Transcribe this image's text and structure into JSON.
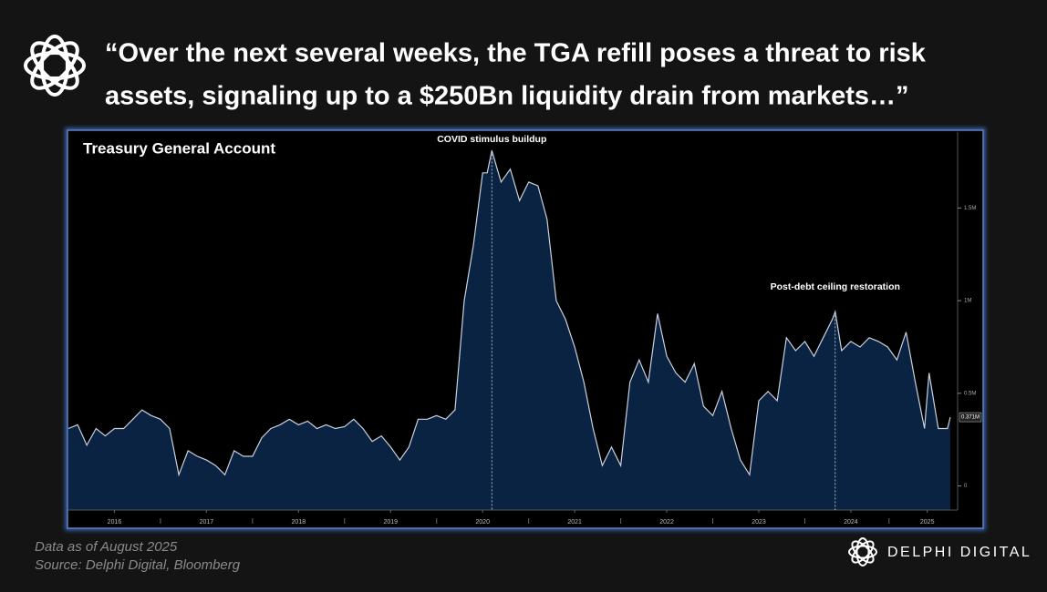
{
  "header": {
    "title_lines": [
      "“Over the next several weeks, the TGA refill poses a threat to risk",
      "assets, signaling up to a $250Bn liquidity drain from markets…”"
    ]
  },
  "chart_data": {
    "type": "area",
    "title": "Treasury General Account",
    "x": [
      2016.0,
      2016.1,
      2016.2,
      2016.3,
      2016.4,
      2016.5,
      2016.6,
      2016.7,
      2016.8,
      2016.9,
      2017.0,
      2017.1,
      2017.2,
      2017.3,
      2017.4,
      2017.5,
      2017.6,
      2017.7,
      2017.8,
      2017.9,
      2018.0,
      2018.1,
      2018.2,
      2018.3,
      2018.4,
      2018.5,
      2018.6,
      2018.7,
      2018.8,
      2018.9,
      2019.0,
      2019.1,
      2019.2,
      2019.3,
      2019.4,
      2019.5,
      2019.6,
      2019.7,
      2019.8,
      2019.9,
      2020.0,
      2020.1,
      2020.2,
      2020.3,
      2020.4,
      2020.5,
      2020.55,
      2020.6,
      2020.7,
      2020.8,
      2020.9,
      2021.0,
      2021.1,
      2021.2,
      2021.3,
      2021.4,
      2021.5,
      2021.6,
      2021.7,
      2021.8,
      2021.9,
      2022.0,
      2022.1,
      2022.2,
      2022.3,
      2022.4,
      2022.5,
      2022.6,
      2022.7,
      2022.8,
      2022.9,
      2023.0,
      2023.1,
      2023.2,
      2023.3,
      2023.4,
      2023.5,
      2023.6,
      2023.7,
      2023.8,
      2023.9,
      2024.0,
      2024.1,
      2024.2,
      2024.3,
      2024.33,
      2024.4,
      2024.5,
      2024.6,
      2024.7,
      2024.8,
      2024.9,
      2025.0,
      2025.1,
      2025.2,
      2025.3,
      2025.35,
      2025.45,
      2025.55,
      2025.58
    ],
    "values": [
      0.31,
      0.33,
      0.22,
      0.31,
      0.27,
      0.31,
      0.31,
      0.36,
      0.41,
      0.38,
      0.36,
      0.31,
      0.06,
      0.19,
      0.16,
      0.14,
      0.11,
      0.06,
      0.19,
      0.16,
      0.16,
      0.26,
      0.31,
      0.33,
      0.36,
      0.33,
      0.35,
      0.31,
      0.33,
      0.31,
      0.32,
      0.36,
      0.31,
      0.24,
      0.27,
      0.21,
      0.14,
      0.21,
      0.36,
      0.36,
      0.38,
      0.36,
      0.41,
      1.0,
      1.3,
      1.69,
      1.69,
      1.81,
      1.64,
      1.71,
      1.54,
      1.64,
      1.62,
      1.44,
      1.0,
      0.9,
      0.75,
      0.56,
      0.31,
      0.11,
      0.21,
      0.11,
      0.56,
      0.68,
      0.56,
      0.93,
      0.7,
      0.61,
      0.56,
      0.66,
      0.43,
      0.38,
      0.51,
      0.31,
      0.14,
      0.06,
      0.46,
      0.51,
      0.46,
      0.8,
      0.73,
      0.78,
      0.7,
      0.8,
      0.9,
      0.94,
      0.73,
      0.78,
      0.75,
      0.8,
      0.78,
      0.75,
      0.68,
      0.83,
      0.56,
      0.31,
      0.61,
      0.31,
      0.31,
      0.371
    ],
    "xlim": [
      2016,
      2025.66
    ],
    "ylim": [
      -0.13,
      1.91
    ],
    "xticks": [
      {
        "value": 2016.5,
        "label": "2016"
      },
      {
        "value": 2017.5,
        "label": "2017"
      },
      {
        "value": 2018.5,
        "label": "2018"
      },
      {
        "value": 2019.5,
        "label": "2019"
      },
      {
        "value": 2020.5,
        "label": "2020"
      },
      {
        "value": 2021.5,
        "label": "2021"
      },
      {
        "value": 2022.5,
        "label": "2022"
      },
      {
        "value": 2023.5,
        "label": "2023"
      },
      {
        "value": 2024.5,
        "label": "2024"
      },
      {
        "value": 2025.33,
        "label": "2025"
      }
    ],
    "yticks": [
      0,
      {
        "value": 0.5,
        "label": "0.5M"
      },
      {
        "value": 1,
        "label": "1M"
      },
      {
        "value": 1.5,
        "label": "1.5M"
      }
    ],
    "last_price": {
      "value": 0.371,
      "label": "0.371M"
    },
    "annotations": [
      {
        "text": "COVID stimulus buildup",
        "x": 2020.6,
        "y": 1.81
      },
      {
        "text": "Post-debt ceiling restoration",
        "x": 2024.33,
        "y": 0.94
      }
    ],
    "fill_color": "#0b2342",
    "line_color": "#c9d1dd"
  },
  "footer": {
    "note": "Data as of August 2025",
    "source": "Source: Delphi Digital, Bloomberg",
    "brand": "DELPHI DIGITAL"
  }
}
